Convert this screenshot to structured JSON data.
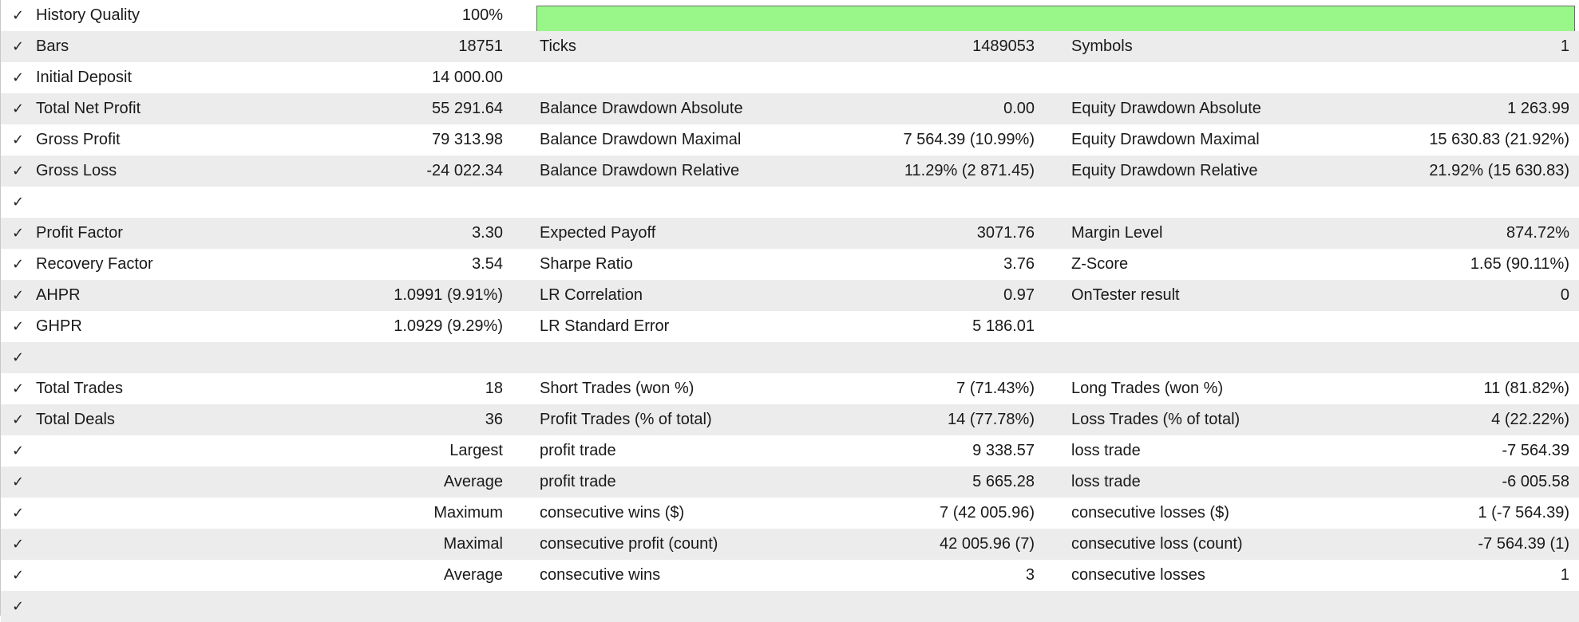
{
  "check_glyph": "✓",
  "history_quality": {
    "label": "History Quality",
    "value": "100%",
    "fill_fraction": 1.0,
    "bar_color": "#99f78a"
  },
  "rows": {
    "bars": {
      "c1_label": "Bars",
      "c1_value": "18751",
      "c2_label": "Ticks",
      "c2_value": "1489053",
      "c3_label": "Symbols",
      "c3_value": "1"
    },
    "initial_deposit": {
      "c1_label": "Initial Deposit",
      "c1_value": "14 000.00"
    },
    "total_net_profit": {
      "c1_label": "Total Net Profit",
      "c1_value": "55 291.64",
      "c2_label": "Balance Drawdown Absolute",
      "c2_value": "0.00",
      "c3_label": "Equity Drawdown Absolute",
      "c3_value": "1 263.99"
    },
    "gross_profit": {
      "c1_label": "Gross Profit",
      "c1_value": "79 313.98",
      "c2_label": "Balance Drawdown Maximal",
      "c2_value": "7 564.39 (10.99%)",
      "c3_label": "Equity Drawdown Maximal",
      "c3_value": "15 630.83 (21.92%)"
    },
    "gross_loss": {
      "c1_label": "Gross Loss",
      "c1_value": "-24 022.34",
      "c2_label": "Balance Drawdown Relative",
      "c2_value": "11.29% (2 871.45)",
      "c3_label": "Equity Drawdown Relative",
      "c3_value": "21.92% (15 630.83)"
    },
    "profit_factor": {
      "c1_label": "Profit Factor",
      "c1_value": "3.30",
      "c2_label": "Expected Payoff",
      "c2_value": "3071.76",
      "c3_label": "Margin Level",
      "c3_value": "874.72%"
    },
    "recovery_factor": {
      "c1_label": "Recovery Factor",
      "c1_value": "3.54",
      "c2_label": "Sharpe Ratio",
      "c2_value": "3.76",
      "c3_label": "Z-Score",
      "c3_value": "1.65 (90.11%)"
    },
    "ahpr": {
      "c1_label": "AHPR",
      "c1_value": "1.0991 (9.91%)",
      "c2_label": "LR Correlation",
      "c2_value": "0.97",
      "c3_label": "OnTester result",
      "c3_value": "0"
    },
    "ghpr": {
      "c1_label": "GHPR",
      "c1_value": "1.0929 (9.29%)",
      "c2_label": "LR Standard Error",
      "c2_value": "5 186.01"
    },
    "total_trades": {
      "c1_label": "Total Trades",
      "c1_value": "18",
      "c2_label": "Short Trades (won %)",
      "c2_value": "7 (71.43%)",
      "c3_label": "Long Trades (won %)",
      "c3_value": "11 (81.82%)"
    },
    "total_deals": {
      "c1_label": "Total Deals",
      "c1_value": "36",
      "c2_label": "Profit Trades (% of total)",
      "c2_value": "14 (77.78%)",
      "c3_label": "Loss Trades (% of total)",
      "c3_value": "4 (22.22%)"
    },
    "largest": {
      "c1_label": "Largest",
      "c2_label": "profit trade",
      "c2_value": "9 338.57",
      "c3_label": "loss trade",
      "c3_value": "-7 564.39"
    },
    "average_trade": {
      "c1_label": "Average",
      "c2_label": "profit trade",
      "c2_value": "5 665.28",
      "c3_label": "loss trade",
      "c3_value": "-6 005.58"
    },
    "maximum": {
      "c1_label": "Maximum",
      "c2_label": "consecutive wins ($)",
      "c2_value": "7 (42 005.96)",
      "c3_label": "consecutive losses ($)",
      "c3_value": "1 (-7 564.39)"
    },
    "maximal": {
      "c1_label": "Maximal",
      "c2_label": "consecutive profit (count)",
      "c2_value": "42 005.96 (7)",
      "c3_label": "consecutive loss (count)",
      "c3_value": "-7 564.39 (1)"
    },
    "average_consecutive": {
      "c1_label": "Average",
      "c2_label": "consecutive wins",
      "c2_value": "3",
      "c3_label": "consecutive losses",
      "c3_value": "1"
    }
  }
}
